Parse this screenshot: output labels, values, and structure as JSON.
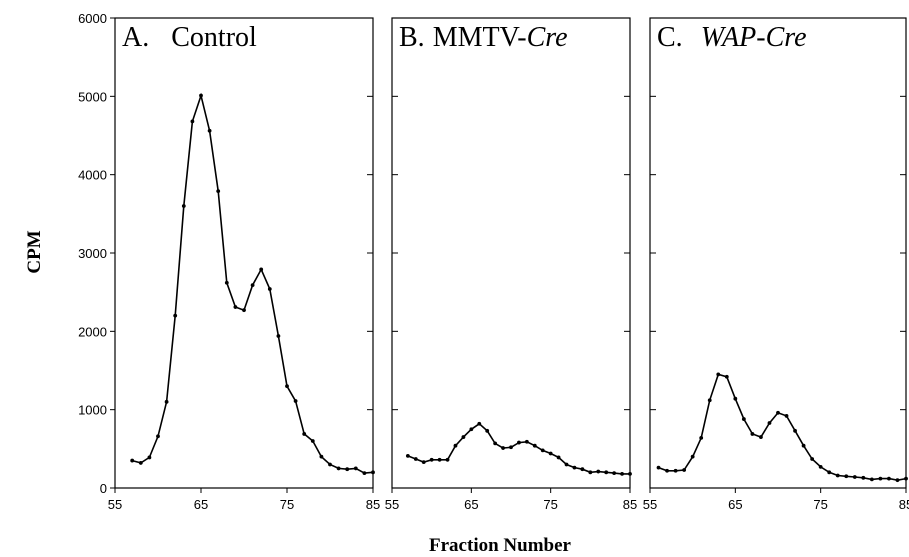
{
  "chart_data": {
    "type": "line",
    "ylabel": "CPM",
    "xlabel": "Fraction Number",
    "ylim": [
      0,
      6000
    ],
    "yticks": [
      "0",
      "1000",
      "2000",
      "3000",
      "4000",
      "5000",
      "6000"
    ],
    "xlim": [
      55,
      85
    ],
    "xticks": [
      "55",
      "65",
      "75",
      "85"
    ],
    "panels": [
      {
        "label_prefix": "A.",
        "label_plain": "Control",
        "label_italic": "",
        "x": [
          57,
          58,
          59,
          60,
          61,
          62,
          63,
          64,
          65,
          66,
          67,
          68,
          69,
          70,
          71,
          72,
          73,
          74,
          75,
          76,
          77,
          78,
          79,
          80,
          81,
          82,
          83,
          84,
          85
        ],
        "y": [
          350,
          320,
          390,
          660,
          1100,
          2200,
          3600,
          4680,
          5010,
          4560,
          3790,
          2620,
          2310,
          2270,
          2590,
          2790,
          2540,
          1940,
          1300,
          1110,
          690,
          600,
          400,
          300,
          250,
          240,
          250,
          190,
          200
        ]
      },
      {
        "label_prefix": "B.",
        "label_plain": "MMTV-",
        "label_italic": "Cre",
        "x": [
          57,
          58,
          59,
          60,
          61,
          62,
          63,
          64,
          65,
          66,
          67,
          68,
          69,
          70,
          71,
          72,
          73,
          74,
          75,
          76,
          77,
          78,
          79,
          80,
          81,
          82,
          83,
          84,
          85
        ],
        "y": [
          410,
          370,
          330,
          360,
          360,
          360,
          540,
          650,
          750,
          820,
          730,
          570,
          510,
          520,
          580,
          590,
          540,
          480,
          440,
          390,
          300,
          260,
          240,
          200,
          210,
          200,
          190,
          180,
          180
        ]
      },
      {
        "label_prefix": "C.",
        "label_plain": "",
        "label_italic": "WAP-Cre",
        "x": [
          56,
          57,
          58,
          59,
          60,
          61,
          62,
          63,
          64,
          65,
          66,
          67,
          68,
          69,
          70,
          71,
          72,
          73,
          74,
          75,
          76,
          77,
          78,
          79,
          80,
          81,
          82,
          83,
          84,
          85
        ],
        "y": [
          260,
          220,
          220,
          230,
          400,
          640,
          1120,
          1450,
          1420,
          1140,
          880,
          690,
          650,
          830,
          960,
          920,
          730,
          540,
          370,
          270,
          200,
          160,
          150,
          140,
          130,
          110,
          120,
          120,
          100,
          120
        ]
      }
    ]
  }
}
